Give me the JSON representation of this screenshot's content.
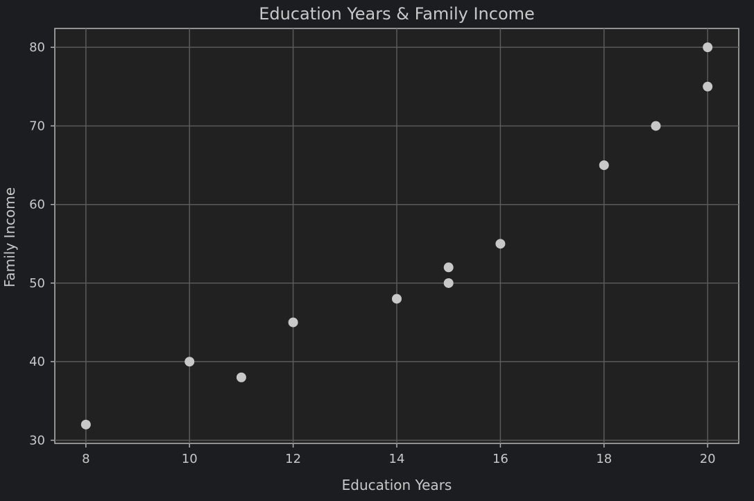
{
  "chart_data": {
    "type": "scatter",
    "title": "Education Years & Family Income",
    "xlabel": "Education Years",
    "ylabel": "Family Income",
    "xlim": [
      7.4,
      20.6
    ],
    "ylim": [
      29.6,
      82.4
    ],
    "xticks": [
      8,
      10,
      12,
      14,
      16,
      18,
      20
    ],
    "yticks": [
      30,
      40,
      50,
      60,
      70,
      80
    ],
    "grid": true,
    "legend": "none",
    "colors": {
      "background": "#1c1d21",
      "plot_background": "#212121",
      "point": "#c8c8c8",
      "grid": "#5a5a5a",
      "text": "#c8c8c8"
    },
    "points": [
      {
        "x": 8,
        "y": 32
      },
      {
        "x": 10,
        "y": 40
      },
      {
        "x": 11,
        "y": 38
      },
      {
        "x": 12,
        "y": 45
      },
      {
        "x": 14,
        "y": 48
      },
      {
        "x": 15,
        "y": 50
      },
      {
        "x": 15,
        "y": 52
      },
      {
        "x": 16,
        "y": 55
      },
      {
        "x": 18,
        "y": 65
      },
      {
        "x": 19,
        "y": 70
      },
      {
        "x": 20,
        "y": 75
      },
      {
        "x": 20,
        "y": 80
      }
    ]
  }
}
